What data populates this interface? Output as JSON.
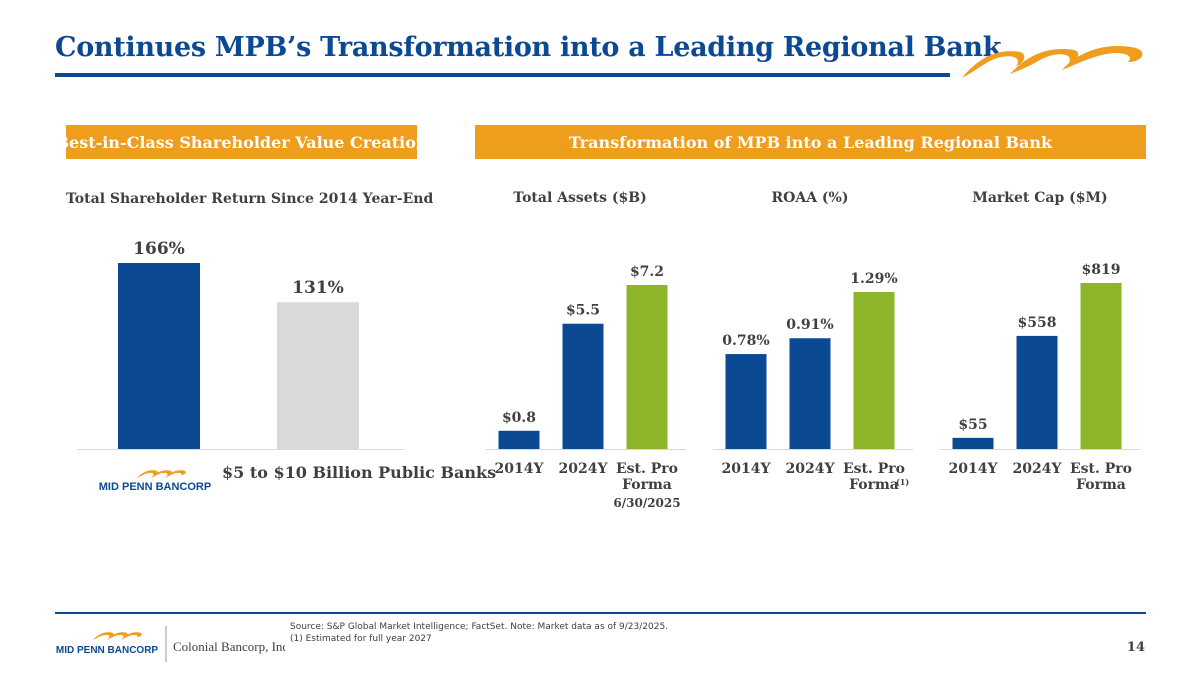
{
  "title": "Continues MPB’s Transformation into a Leading Regional Bank",
  "banners": {
    "left": "Best-in-Class Shareholder Value Creation",
    "right": "Transformation of MPB into a Leading Regional Bank"
  },
  "logos": {
    "mid_penn": "MID PENN BANCORP",
    "colonial": "Colonial Bancorp, Inc."
  },
  "colors": {
    "navy": "#0b4a93",
    "orange": "#ef9d1c",
    "green": "#8cb52a",
    "gray": "#d9d9d9",
    "text": "#404040"
  },
  "chart_data": [
    {
      "type": "bar",
      "id": "tsr",
      "title": "Total Shareholder Return Since 2014 Year-End",
      "categories": [
        "MID PENN BANCORP",
        "$5 to $10 Billion Public Banks"
      ],
      "values": [
        166,
        131
      ],
      "labels": [
        "166%",
        "131%"
      ],
      "colors": [
        "#0b4a93",
        "#d9d9d9"
      ],
      "ylim": [
        0,
        166
      ]
    },
    {
      "type": "bar",
      "id": "assets",
      "title": "Total Assets ($B)",
      "categories": [
        "2014Y",
        "2024Y",
        "Est. Pro Forma"
      ],
      "category_note": "6/30/2025",
      "values": [
        0.8,
        5.5,
        7.2
      ],
      "labels": [
        "$0.8",
        "$5.5",
        "$7.2"
      ],
      "colors": [
        "#0b4a93",
        "#0b4a93",
        "#8cb52a"
      ],
      "ylim": [
        0,
        7.2
      ]
    },
    {
      "type": "bar",
      "id": "roaa",
      "title": "ROAA (%)",
      "categories": [
        "2014Y",
        "2024Y",
        "Est. Pro Forma"
      ],
      "category_footnote": "(1)",
      "values": [
        0.78,
        0.91,
        1.29
      ],
      "labels": [
        "0.78%",
        "0.91%",
        "1.29%"
      ],
      "colors": [
        "#0b4a93",
        "#0b4a93",
        "#8cb52a"
      ],
      "ylim": [
        0,
        1.29
      ]
    },
    {
      "type": "bar",
      "id": "mcap",
      "title": "Market Cap ($M)",
      "categories": [
        "2014Y",
        "2024Y",
        "Est. Pro Forma"
      ],
      "values": [
        55,
        558,
        819
      ],
      "labels": [
        "$55",
        "$558",
        "$819"
      ],
      "colors": [
        "#0b4a93",
        "#0b4a93",
        "#8cb52a"
      ],
      "ylim": [
        0,
        819
      ]
    }
  ],
  "footer": {
    "source": "Source: S&P Global Market Intelligence; FactSet. Note: Market data as of 9/23/2025.",
    "note1": "(1) Estimated for full year 2027",
    "page": "14"
  }
}
